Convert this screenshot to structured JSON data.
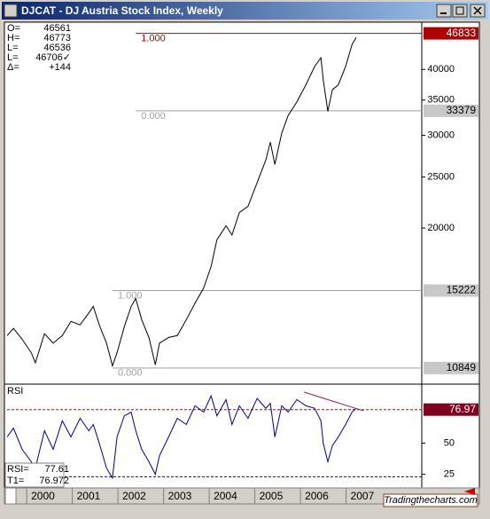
{
  "window_title": "DJCAT - DJ Austria Stock Index, Weekly",
  "quote": [
    [
      "O=",
      "46561"
    ],
    [
      "H=",
      "46773"
    ],
    [
      "L=",
      "46536"
    ],
    [
      "L=",
      "46706✓"
    ],
    [
      "Δ=",
      "+144"
    ]
  ],
  "watermark": "Tradingthecharts.com",
  "chart_data": [
    {
      "type": "line",
      "color": "#000000",
      "log_scale": true,
      "x": [
        1999.57,
        1999.71,
        1999.9,
        2000.1,
        2000.19,
        2000.39,
        2000.58,
        2000.78,
        2000.97,
        2001.17,
        2001.36,
        2001.46,
        2001.59,
        2001.75,
        2001.88,
        2001.98,
        2002.14,
        2002.29,
        2002.39,
        2002.52,
        2002.68,
        2002.82,
        2002.91,
        2003.11,
        2003.3,
        2003.5,
        2003.69,
        2003.88,
        2004.04,
        2004.17,
        2004.37,
        2004.5,
        2004.66,
        2004.85,
        2005.05,
        2005.24,
        2005.34,
        2005.44,
        2005.59,
        2005.73,
        2005.92,
        2006.12,
        2006.31,
        2006.45,
        2006.5,
        2006.6,
        2006.7,
        2006.83,
        2006.99,
        2007.13,
        2007.22
      ],
      "values": [
        12500,
        12900,
        12300,
        11600,
        11100,
        12600,
        12100,
        12500,
        13300,
        13100,
        13800,
        14200,
        13100,
        12100,
        10950,
        11600,
        13000,
        14200,
        14700,
        13400,
        12400,
        11000,
        12100,
        12400,
        12500,
        13400,
        14400,
        15400,
        16900,
        19000,
        20200,
        19400,
        21400,
        22000,
        24400,
        26900,
        29100,
        26400,
        30300,
        32700,
        34700,
        37400,
        40500,
        42100,
        38200,
        33300,
        36600,
        37400,
        40500,
        44600,
        46000
      ],
      "xlim": [
        1999.57,
        2008.64
      ],
      "ylim": [
        10150,
        48230
      ],
      "yticks": [
        20000,
        25000,
        30000,
        35000,
        40000
      ],
      "levels": [
        {
          "price": 46833,
          "ratio": "1.000",
          "start": 2002.39,
          "color": "#b00000",
          "label_bg": "#b00000",
          "label_color": "#ffffff"
        },
        {
          "price": 33379,
          "ratio": "0.000",
          "start": 2002.39,
          "color": "#a0a0a0",
          "label_bg": "#c8c8c8",
          "label_color": "#000000"
        },
        {
          "price": 15222,
          "ratio": "1.000",
          "start": 2001.88,
          "color": "#a0a0a0",
          "label_bg": "#c8c8c8",
          "label_color": "#000000"
        },
        {
          "price": 10849,
          "ratio": "0.000",
          "start": 2001.88,
          "color": "#a0a0a0",
          "label_bg": "#c8c8c8",
          "label_color": "#000000"
        }
      ]
    },
    {
      "type": "line",
      "title": "RSI",
      "color": "#00008b",
      "x": [
        1999.57,
        1999.71,
        1999.9,
        2000.1,
        2000.19,
        2000.39,
        2000.58,
        2000.78,
        2000.97,
        2001.17,
        2001.36,
        2001.46,
        2001.59,
        2001.75,
        2001.88,
        2001.98,
        2002.14,
        2002.29,
        2002.39,
        2002.52,
        2002.68,
        2002.82,
        2002.91,
        2003.11,
        2003.3,
        2003.5,
        2003.69,
        2003.88,
        2004.04,
        2004.17,
        2004.37,
        2004.5,
        2004.66,
        2004.85,
        2005.05,
        2005.24,
        2005.34,
        2005.44,
        2005.59,
        2005.73,
        2005.92,
        2006.12,
        2006.31,
        2006.45,
        2006.5,
        2006.6,
        2006.7,
        2006.83,
        2006.99,
        2007.13,
        2007.22
      ],
      "values": [
        55,
        62,
        45,
        35,
        30,
        60,
        45,
        68,
        55,
        70,
        60,
        65,
        50,
        30,
        22,
        55,
        72,
        75,
        60,
        45,
        35,
        25,
        40,
        55,
        70,
        65,
        80,
        75,
        88,
        72,
        85,
        65,
        80,
        70,
        86,
        78,
        82,
        55,
        80,
        75,
        85,
        80,
        78,
        68,
        50,
        35,
        48,
        55,
        65,
        75,
        78
      ],
      "xlim": [
        1999.57,
        2008.64
      ],
      "ylim": [
        14,
        96
      ],
      "yticks": [
        25,
        50
      ],
      "xticks": [
        2000,
        2001,
        2002,
        2003,
        2004,
        2005,
        2006,
        2007
      ],
      "overbought": 76.97,
      "oversold": 23,
      "trendline": {
        "x": [
          2006.08,
          2007.38
        ],
        "values": [
          91,
          76
        ],
        "color": "#8b2252"
      },
      "legend": [
        [
          "RSI=",
          "77.61"
        ],
        [
          "T1=",
          "76.972"
        ]
      ]
    }
  ]
}
